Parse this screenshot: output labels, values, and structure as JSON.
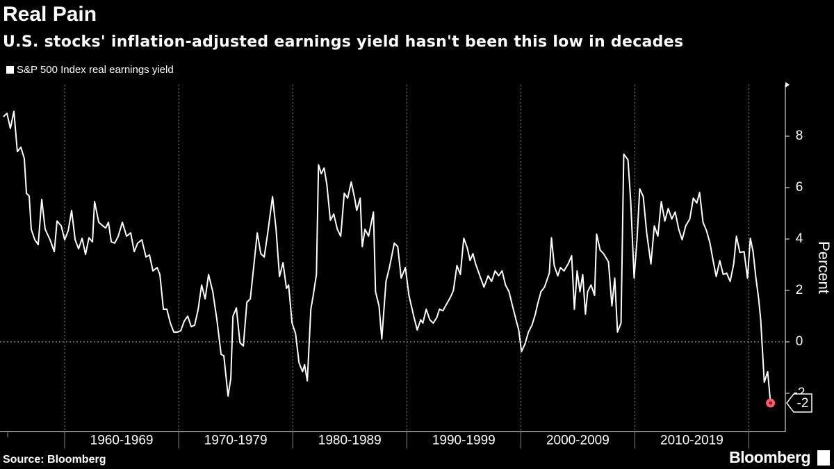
{
  "chart_data": {
    "type": "line",
    "title": "Real Pain",
    "subtitle": "U.S. stocks' inflation-adjusted earnings yield hasn't been this low in decades",
    "y_axis_label": "Percent",
    "source": "Source: Bloomberg",
    "brand": "Bloomberg",
    "xlim": [
      1954.33,
      2023.2
    ],
    "ylim": [
      -3.5,
      10
    ],
    "yticks": [
      -2,
      0,
      2,
      4,
      6,
      8
    ],
    "xticks": [
      1955,
      1960,
      1970,
      1980,
      1990,
      2000,
      2010,
      2020
    ],
    "decade_labels": [
      {
        "value": 1965,
        "label": "1960-1969"
      },
      {
        "value": 1975,
        "label": "1970-1979"
      },
      {
        "value": 1985,
        "label": "1980-1989"
      },
      {
        "value": 1995,
        "label": "1990-1999"
      },
      {
        "value": 2005,
        "label": "2000-2009"
      },
      {
        "value": 2015,
        "label": "2010-2019"
      }
    ],
    "zero_line": true,
    "series": [
      {
        "name": "S&P 500 Index real earnings yield",
        "color": "#ffffff",
        "end_marker_color": "#ff5c6f",
        "x": [
          1954.63,
          1954.94,
          1955.24,
          1955.55,
          1955.85,
          1956.16,
          1956.46,
          1956.65,
          1956.89,
          1957.07,
          1957.38,
          1957.68,
          1957.99,
          1958.29,
          1958.72,
          1959.09,
          1959.33,
          1959.7,
          1960.0,
          1960.31,
          1960.61,
          1960.92,
          1961.22,
          1961.53,
          1961.83,
          1962.13,
          1962.44,
          1962.62,
          1962.99,
          1963.35,
          1963.6,
          1963.84,
          1964.09,
          1964.39,
          1964.7,
          1965.06,
          1965.43,
          1965.79,
          1966.1,
          1966.4,
          1966.77,
          1967.13,
          1967.44,
          1967.74,
          1968.11,
          1968.35,
          1968.66,
          1968.96,
          1969.27,
          1969.57,
          1969.88,
          1970.18,
          1970.49,
          1970.79,
          1971.1,
          1971.4,
          1971.71,
          1972.01,
          1972.32,
          1972.62,
          1972.99,
          1973.35,
          1973.72,
          1973.96,
          1974.33,
          1974.57,
          1974.76,
          1975.06,
          1975.37,
          1975.67,
          1975.98,
          1976.28,
          1976.59,
          1976.89,
          1977.2,
          1977.5,
          1977.81,
          1978.23,
          1978.54,
          1978.84,
          1979.15,
          1979.45,
          1979.64,
          1979.94,
          1980.25,
          1980.55,
          1980.86,
          1981.04,
          1981.28,
          1981.59,
          1981.77,
          1982.08,
          1982.26,
          1982.5,
          1982.75,
          1982.99,
          1983.3,
          1983.6,
          1983.91,
          1984.21,
          1984.52,
          1984.82,
          1985.13,
          1985.43,
          1985.61,
          1985.92,
          1986.1,
          1986.34,
          1986.65,
          1987.08,
          1987.26,
          1987.57,
          1987.81,
          1988.18,
          1988.48,
          1988.91,
          1989.21,
          1989.51,
          1989.88,
          1990.19,
          1990.61,
          1990.92,
          1991.22,
          1991.41,
          1991.71,
          1992.02,
          1992.32,
          1992.63,
          1992.87,
          1993.17,
          1993.48,
          1993.85,
          1994.09,
          1994.4,
          1994.7,
          1995.0,
          1995.31,
          1995.55,
          1995.8,
          1996.04,
          1996.41,
          1996.77,
          1997.14,
          1997.44,
          1997.75,
          1998.05,
          1998.36,
          1998.66,
          1998.97,
          1999.27,
          1999.58,
          1999.82,
          2000.06,
          2000.37,
          2000.67,
          2000.98,
          2001.28,
          2001.47,
          2001.77,
          2002.08,
          2002.5,
          2002.69,
          2002.93,
          2003.24,
          2003.48,
          2003.79,
          2004.15,
          2004.46,
          2004.7,
          2004.94,
          2005.19,
          2005.43,
          2005.67,
          2005.86,
          2006.16,
          2006.47,
          2006.65,
          2006.96,
          2007.26,
          2007.69,
          2007.99,
          2008.24,
          2008.48,
          2008.79,
          2009.03,
          2009.4,
          2009.64,
          2009.94,
          2010.19,
          2010.43,
          2010.74,
          2011.04,
          2011.41,
          2011.71,
          2012.02,
          2012.32,
          2012.63,
          2012.93,
          2013.24,
          2013.54,
          2013.85,
          2014.15,
          2014.46,
          2014.82,
          2015.13,
          2015.43,
          2015.68,
          2015.98,
          2016.29,
          2016.59,
          2016.9,
          2017.14,
          2017.45,
          2017.75,
          2018.06,
          2018.36,
          2018.67,
          2018.91,
          2019.21,
          2019.58,
          2019.88,
          2020.13,
          2020.37,
          2020.62,
          2020.86,
          2021.04,
          2021.35,
          2021.65,
          2021.9
        ],
        "values": [
          8.76,
          8.89,
          8.3,
          8.97,
          7.4,
          7.57,
          7.13,
          5.78,
          5.67,
          4.38,
          3.97,
          3.78,
          5.54,
          4.38,
          3.97,
          3.51,
          4.7,
          4.51,
          3.97,
          4.32,
          5.11,
          3.97,
          3.62,
          4.03,
          3.4,
          4.05,
          3.89,
          5.46,
          4.65,
          4.51,
          4.43,
          4.65,
          3.89,
          3.84,
          4.11,
          4.65,
          4.11,
          4.24,
          3.51,
          3.84,
          3.97,
          3.3,
          3.38,
          2.76,
          2.89,
          2.62,
          1.27,
          1.27,
          0.73,
          0.38,
          0.38,
          0.43,
          0.81,
          1.0,
          0.59,
          0.65,
          1.27,
          2.21,
          1.67,
          2.62,
          1.95,
          0.86,
          -0.49,
          -0.54,
          -2.11,
          -1.43,
          1.0,
          1.32,
          -0.03,
          -0.16,
          1.54,
          1.67,
          2.97,
          4.24,
          3.43,
          3.3,
          4.24,
          5.65,
          4.38,
          2.54,
          3.08,
          2.08,
          2.21,
          0.73,
          0.32,
          -0.81,
          -1.16,
          -0.89,
          -1.52,
          1.27,
          1.73,
          2.62,
          6.89,
          6.54,
          6.76,
          6.13,
          4.73,
          4.97,
          4.38,
          4.11,
          5.78,
          5.59,
          6.22,
          5.59,
          5.11,
          5.59,
          3.7,
          4.38,
          4.11,
          5.05,
          1.95,
          1.4,
          0.11,
          2.35,
          2.89,
          3.84,
          3.7,
          2.48,
          2.89,
          1.81,
          1.0,
          0.46,
          0.86,
          0.73,
          1.27,
          0.86,
          0.73,
          0.94,
          1.27,
          1.21,
          1.46,
          1.75,
          2.0,
          2.97,
          2.62,
          4.03,
          3.65,
          3.16,
          3.43,
          3.03,
          2.57,
          2.13,
          2.57,
          2.35,
          2.76,
          2.57,
          2.76,
          2.21,
          1.95,
          1.4,
          0.86,
          0.46,
          -0.38,
          -0.08,
          0.38,
          0.65,
          1.08,
          1.46,
          1.95,
          2.13,
          2.67,
          4.05,
          2.97,
          2.57,
          2.89,
          2.76,
          3.03,
          3.35,
          1.27,
          2.76,
          1.95,
          2.62,
          1.08,
          1.95,
          2.21,
          1.81,
          4.19,
          3.57,
          3.43,
          3.11,
          1.4,
          2.48,
          0.38,
          0.73,
          7.3,
          7.08,
          5.46,
          2.48,
          3.97,
          5.95,
          5.65,
          4.24,
          3.03,
          4.51,
          4.11,
          5.46,
          4.7,
          5.19,
          4.78,
          5.05,
          4.38,
          3.97,
          4.51,
          4.78,
          5.59,
          5.4,
          5.81,
          4.65,
          4.32,
          3.84,
          3.08,
          2.54,
          3.16,
          2.62,
          2.67,
          2.35,
          3.03,
          4.11,
          3.48,
          3.51,
          2.48,
          4.03,
          3.51,
          2.48,
          1.67,
          0.86,
          -1.57,
          -1.16,
          -2.38
        ],
        "value_labels": [
          null,
          null,
          null,
          null,
          null,
          null,
          null,
          null,
          null,
          null,
          null,
          null,
          null,
          null,
          null,
          null,
          null,
          null,
          null,
          null,
          null,
          null,
          null,
          null,
          null,
          null,
          null,
          null,
          null,
          null,
          null,
          null,
          null,
          null,
          null,
          null,
          null,
          null,
          null,
          null,
          null,
          null,
          null,
          null,
          null,
          null,
          null,
          null,
          null,
          null,
          null,
          null,
          null,
          null,
          null,
          null,
          null,
          null,
          null,
          null,
          null,
          null,
          null,
          null,
          null,
          null,
          null,
          null,
          null,
          null,
          null,
          null,
          null,
          null,
          null,
          null,
          null,
          null,
          null,
          null,
          null,
          null,
          null,
          null,
          null,
          null,
          null,
          null,
          null,
          null,
          null,
          null,
          null,
          null,
          null,
          null,
          null,
          null,
          null,
          null,
          null,
          null,
          null,
          null,
          null,
          null,
          null,
          null,
          null,
          null,
          null,
          null,
          null,
          null,
          null,
          null,
          null,
          null,
          null,
          null,
          null,
          null,
          null,
          null,
          null,
          null,
          null,
          null,
          null,
          null,
          null,
          null,
          null,
          null,
          null,
          null,
          null,
          null,
          null,
          null,
          null,
          null,
          null,
          null,
          null,
          null,
          null,
          null,
          null,
          null,
          null,
          null,
          null,
          null,
          null,
          null,
          null,
          null,
          null,
          null,
          null,
          null,
          null,
          null,
          null,
          null,
          null,
          null,
          null,
          null,
          null,
          null,
          null,
          null,
          null,
          null,
          null,
          null,
          null,
          null,
          null,
          null,
          null,
          null,
          null,
          null,
          null,
          null,
          null,
          null,
          null,
          null,
          null,
          null,
          null,
          null,
          null,
          null,
          null,
          null,
          null,
          null,
          null,
          null,
          null,
          null,
          null,
          null,
          null,
          null,
          null,
          null,
          null,
          null,
          null,
          null,
          null,
          null,
          null,
          null,
          null,
          null,
          null,
          null,
          null,
          null,
          null,
          null,
          "-2"
        ]
      }
    ]
  }
}
